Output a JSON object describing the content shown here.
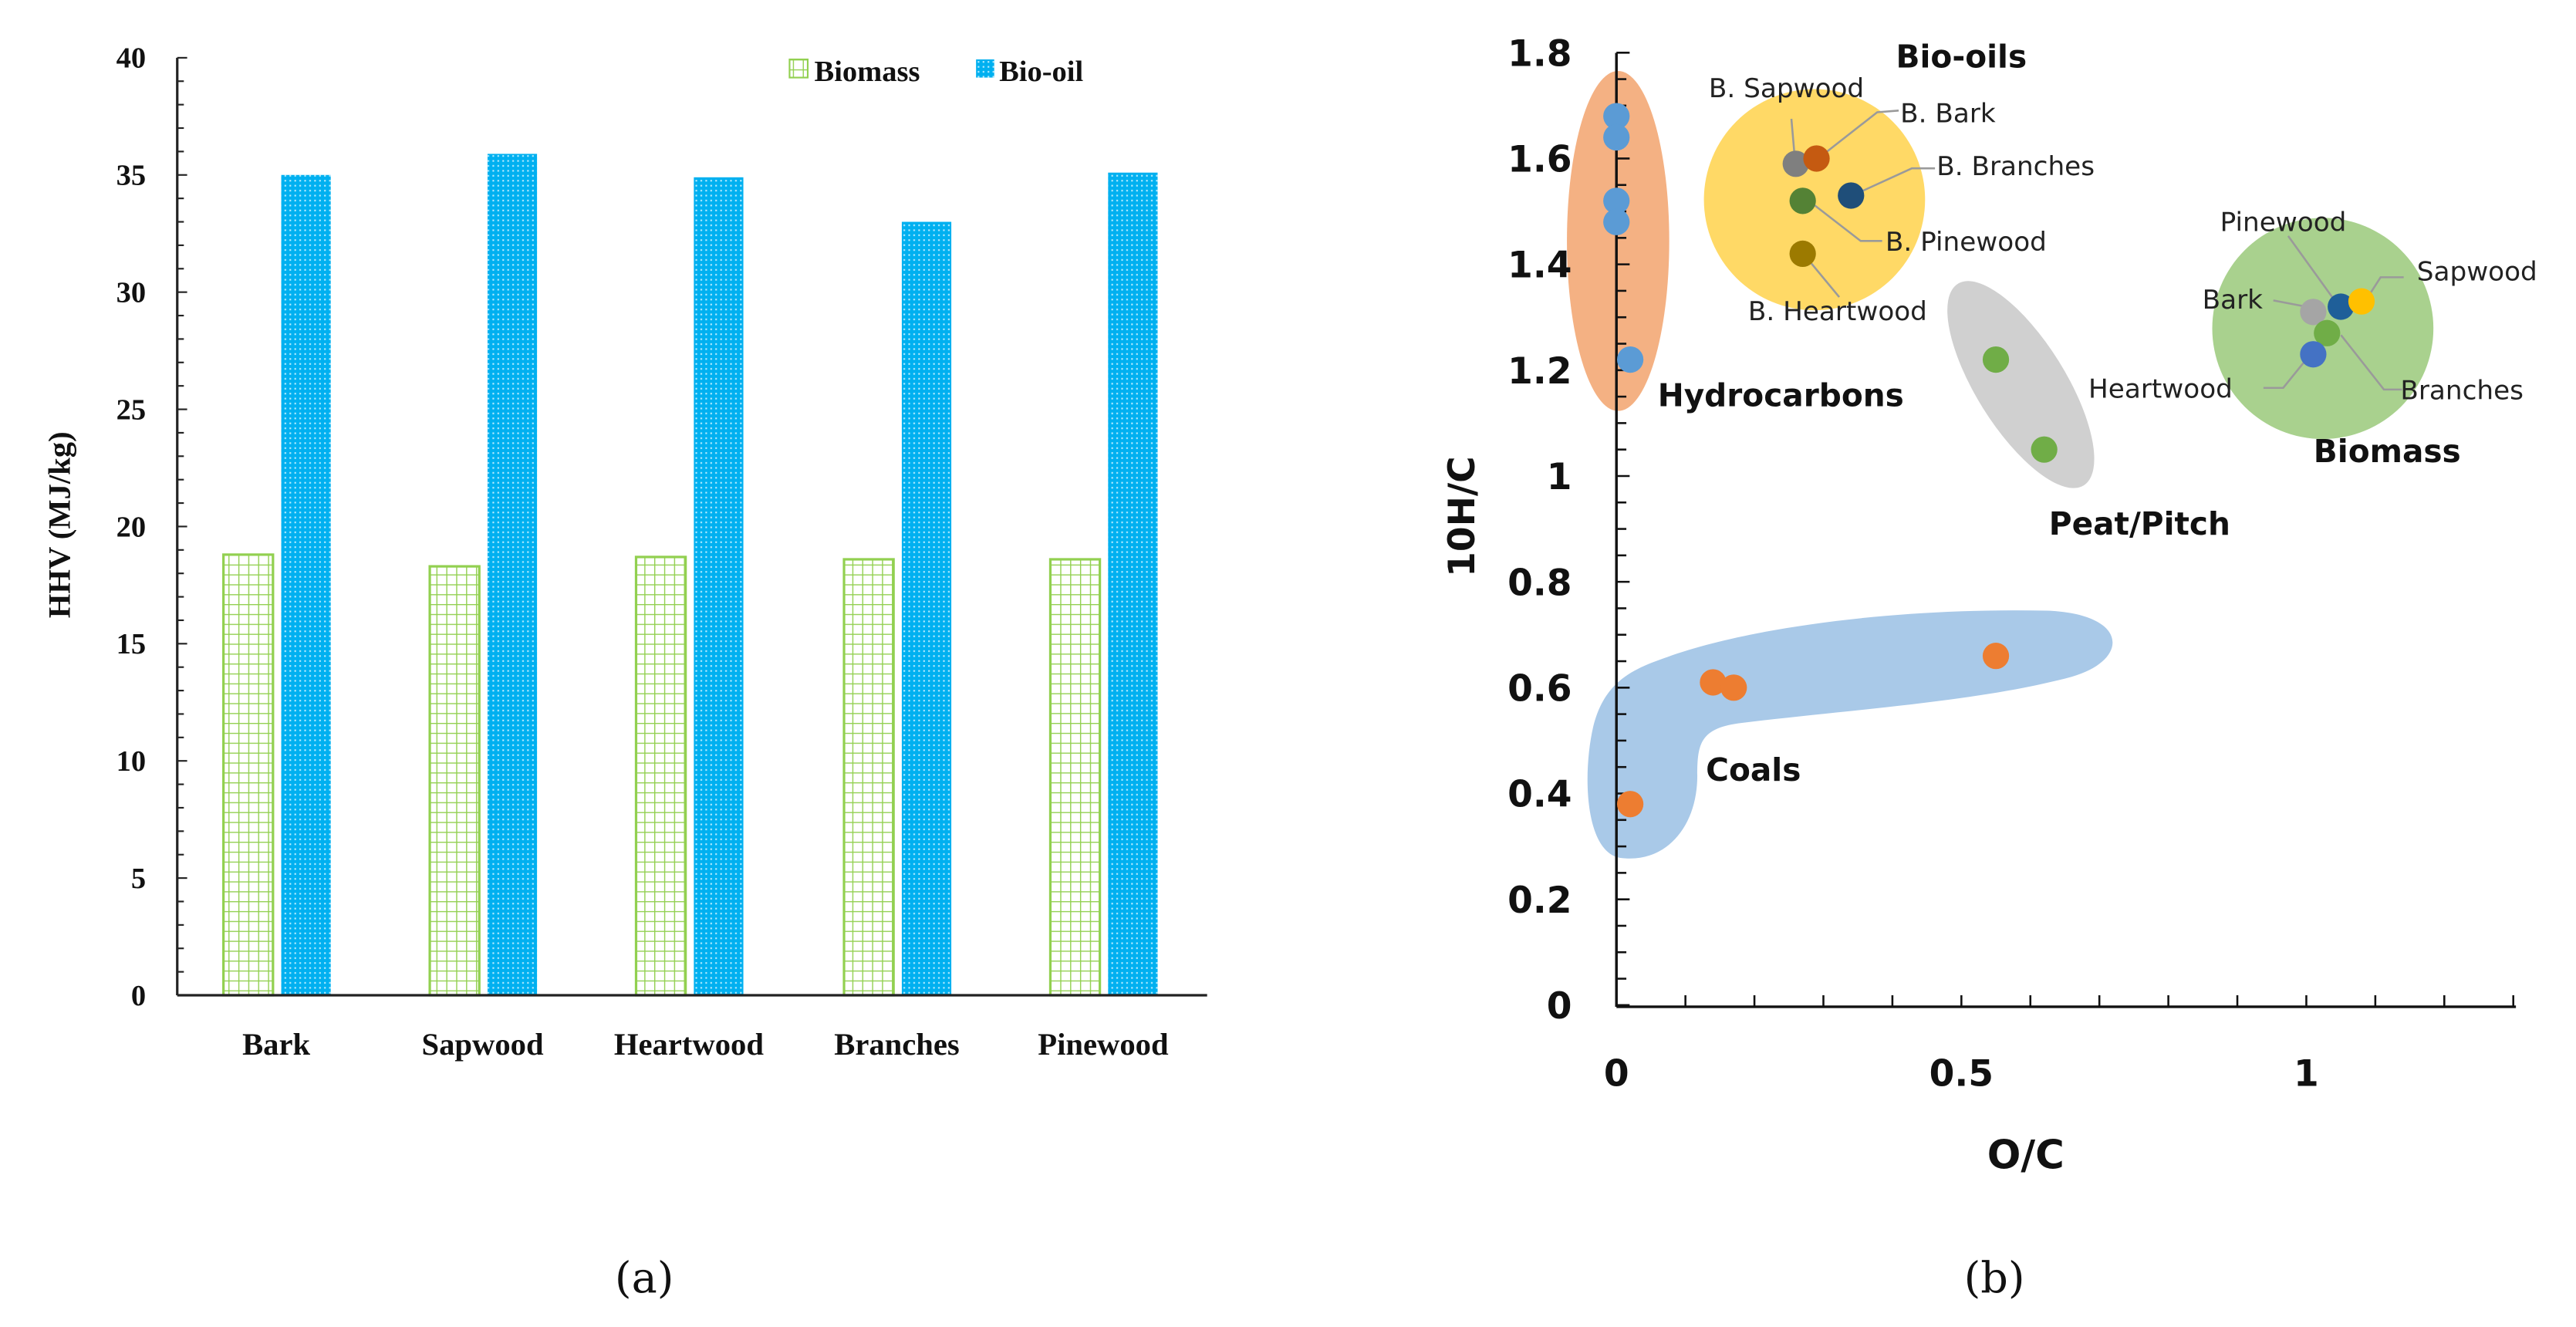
{
  "captions": {
    "a": "(a)",
    "b": "(b)"
  },
  "chart_data": [
    {
      "type": "bar",
      "title": "",
      "xlabel": "",
      "ylabel": "HHV (MJ/kg)",
      "ylim": [
        0,
        40
      ],
      "yticks": [
        "0",
        "5",
        "10",
        "15",
        "20",
        "25",
        "30",
        "35",
        "40"
      ],
      "categories": [
        "Bark",
        "Sapwood",
        "Heartwood",
        "Branches",
        "Pinewood"
      ],
      "legend": {
        "position": "top-right",
        "entries": [
          "Biomass",
          "Bio-oil"
        ]
      },
      "series": [
        {
          "name": "Biomass",
          "color": "#92d050",
          "values": [
            18.8,
            18.3,
            18.7,
            18.6,
            18.6
          ]
        },
        {
          "name": "Bio-oil",
          "color": "#00b0f0",
          "values": [
            35.0,
            35.9,
            34.9,
            33.0,
            35.1
          ]
        }
      ]
    },
    {
      "type": "scatter",
      "title": "",
      "xlabel": "O/C",
      "ylabel": "10H/C",
      "xlim": [
        0,
        1.3
      ],
      "ylim": [
        0,
        1.8
      ],
      "xticks": [
        "0",
        "0.5",
        "1"
      ],
      "yticks": [
        "0",
        "0.2",
        "0.4",
        "0.6",
        "0.8",
        "1",
        "1.2",
        "1.4",
        "1.6",
        "1.8"
      ],
      "groups": [
        {
          "name": "Hydrocarbons",
          "color": "#f4b183",
          "points": [
            {
              "x": 0,
              "y": 1.68,
              "color": "#5b9bd5"
            },
            {
              "x": 0,
              "y": 1.64,
              "color": "#5b9bd5"
            },
            {
              "x": 0,
              "y": 1.52,
              "color": "#5b9bd5"
            },
            {
              "x": 0,
              "y": 1.48,
              "color": "#5b9bd5"
            },
            {
              "x": 0.02,
              "y": 1.22,
              "color": "#5b9bd5"
            }
          ]
        },
        {
          "name": "Bio-oils",
          "color": "#ffd966",
          "points": [
            {
              "label": "B. Sapwood",
              "x": 0.26,
              "y": 1.59,
              "color": "#7f7f7f"
            },
            {
              "label": "B. Bark",
              "x": 0.29,
              "y": 1.6,
              "color": "#c55a11"
            },
            {
              "label": "B. Branches",
              "x": 0.34,
              "y": 1.53,
              "color": "#1f4e79"
            },
            {
              "label": "B. Pinewood",
              "x": 0.27,
              "y": 1.52,
              "color": "#548235"
            },
            {
              "label": "B. Heartwood",
              "x": 0.27,
              "y": 1.42,
              "color": "#9c7a00"
            }
          ]
        },
        {
          "name": "Biomass",
          "color": "#a9d18e",
          "points": [
            {
              "label": "Bark",
              "x": 1.01,
              "y": 1.31,
              "color": "#a5a5a5"
            },
            {
              "label": "Pinewood",
              "x": 1.05,
              "y": 1.32,
              "color": "#1f5f99"
            },
            {
              "label": "Sapwood",
              "x": 1.08,
              "y": 1.33,
              "color": "#ffc000"
            },
            {
              "label": "Branches",
              "x": 1.03,
              "y": 1.27,
              "color": "#70ad47"
            },
            {
              "label": "Heartwood",
              "x": 1.01,
              "y": 1.23,
              "color": "#4472c4"
            }
          ]
        },
        {
          "name": "Peat/Pitch",
          "color": "#d0d0d0",
          "points": [
            {
              "x": 0.55,
              "y": 1.22,
              "color": "#70ad47"
            },
            {
              "x": 0.62,
              "y": 1.05,
              "color": "#70ad47"
            }
          ]
        },
        {
          "name": "Coals",
          "color": "#a9c9e8",
          "points": [
            {
              "x": 0.02,
              "y": 0.38,
              "color": "#ed7d31"
            },
            {
              "x": 0.14,
              "y": 0.61,
              "color": "#ed7d31"
            },
            {
              "x": 0.17,
              "y": 0.6,
              "color": "#ed7d31"
            },
            {
              "x": 0.55,
              "y": 0.66,
              "color": "#ed7d31"
            }
          ]
        }
      ]
    }
  ]
}
